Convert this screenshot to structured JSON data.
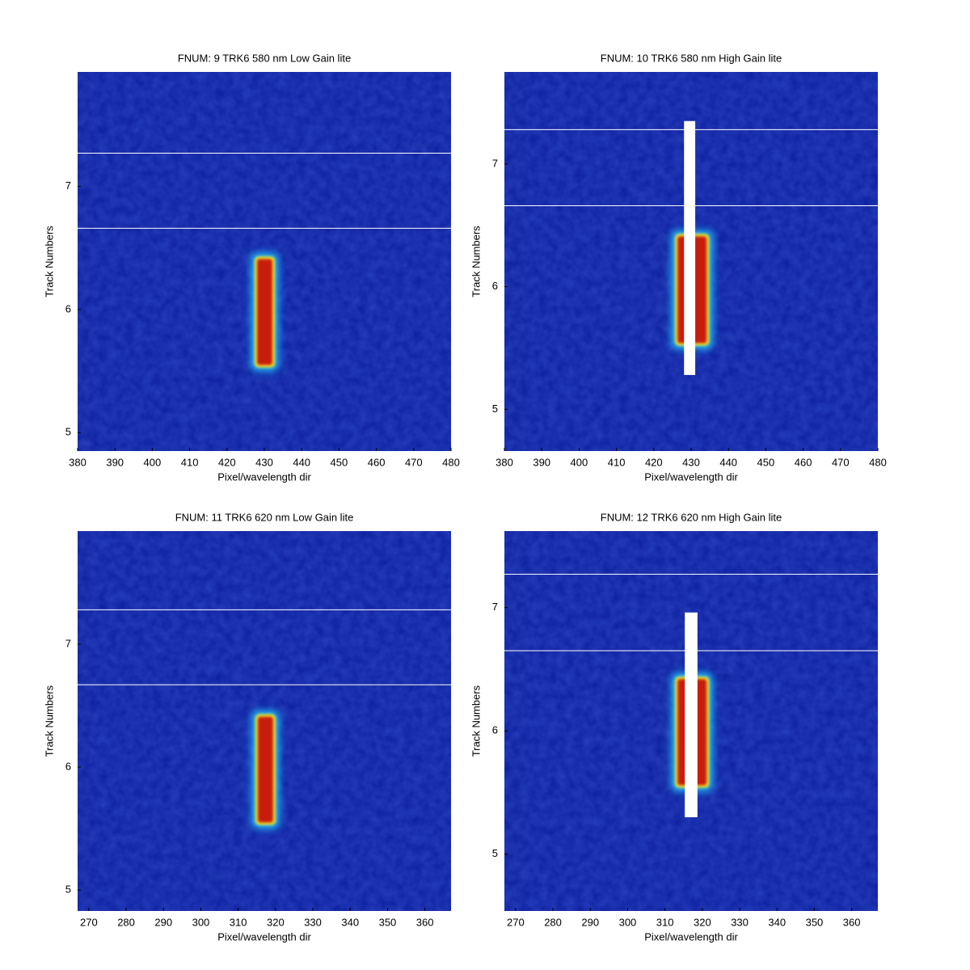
{
  "chart_data": [
    {
      "type": "heatmap",
      "title": "FNUM: 9 TRK6 580 nm Low Gain lite",
      "xlabel": "Pixel/wavelength dir",
      "ylabel": "Track Numbers",
      "xlim": [
        380,
        480
      ],
      "ylim": [
        4.85,
        7.93
      ],
      "xticks": [
        380,
        390,
        400,
        410,
        420,
        430,
        440,
        450,
        460,
        470,
        480
      ],
      "yticks": [
        5,
        6,
        7
      ],
      "hlines": [
        7.27,
        6.66
      ],
      "spot": {
        "x": [
          427.4,
          432.8
        ],
        "y": [
          5.53,
          6.43
        ]
      }
    },
    {
      "type": "heatmap",
      "title": "FNUM: 10 TRK6 580 nm High Gain lite",
      "xlabel": "Pixel/wavelength dir",
      "ylabel": "Track Numbers",
      "xlim": [
        380,
        480
      ],
      "ylim": [
        4.66,
        7.75
      ],
      "xticks": [
        380,
        390,
        400,
        410,
        420,
        430,
        440,
        450,
        460,
        470,
        480
      ],
      "yticks": [
        5,
        6,
        7
      ],
      "hlines": [
        7.28,
        6.66
      ],
      "spot": {
        "x": [
          425.7,
          434.8
        ],
        "y": [
          5.52,
          6.43
        ]
      },
      "saturated": {
        "x": [
          428.1,
          431.1
        ],
        "y": [
          5.28,
          7.35
        ]
      }
    },
    {
      "type": "heatmap",
      "title": "FNUM: 11 TRK6 620 nm Low Gain lite",
      "xlabel": "Pixel/wavelength dir",
      "ylabel": "Track Numbers",
      "xlim": [
        267,
        367
      ],
      "ylim": [
        4.83,
        7.92
      ],
      "xticks": [
        270,
        280,
        290,
        300,
        310,
        320,
        330,
        340,
        350,
        360
      ],
      "yticks": [
        5,
        6,
        7
      ],
      "hlines": [
        7.28,
        6.67
      ],
      "spot": {
        "x": [
          314.6,
          320
        ],
        "y": [
          5.53,
          6.43
        ]
      }
    },
    {
      "type": "heatmap",
      "title": "FNUM: 12 TRK6 620 nm High Gain lite",
      "xlabel": "Pixel/wavelength dir",
      "ylabel": "Track Numbers",
      "xlim": [
        267,
        367
      ],
      "ylim": [
        4.54,
        7.62
      ],
      "xticks": [
        270,
        280,
        290,
        300,
        310,
        320,
        330,
        340,
        350,
        360
      ],
      "yticks": [
        5,
        6,
        7
      ],
      "hlines": [
        7.27,
        6.65
      ],
      "spot": {
        "x": [
          312.7,
          321.8
        ],
        "y": [
          5.54,
          6.44
        ]
      },
      "saturated": {
        "x": [
          315.3,
          318.7
        ],
        "y": [
          5.3,
          6.96
        ]
      }
    }
  ]
}
